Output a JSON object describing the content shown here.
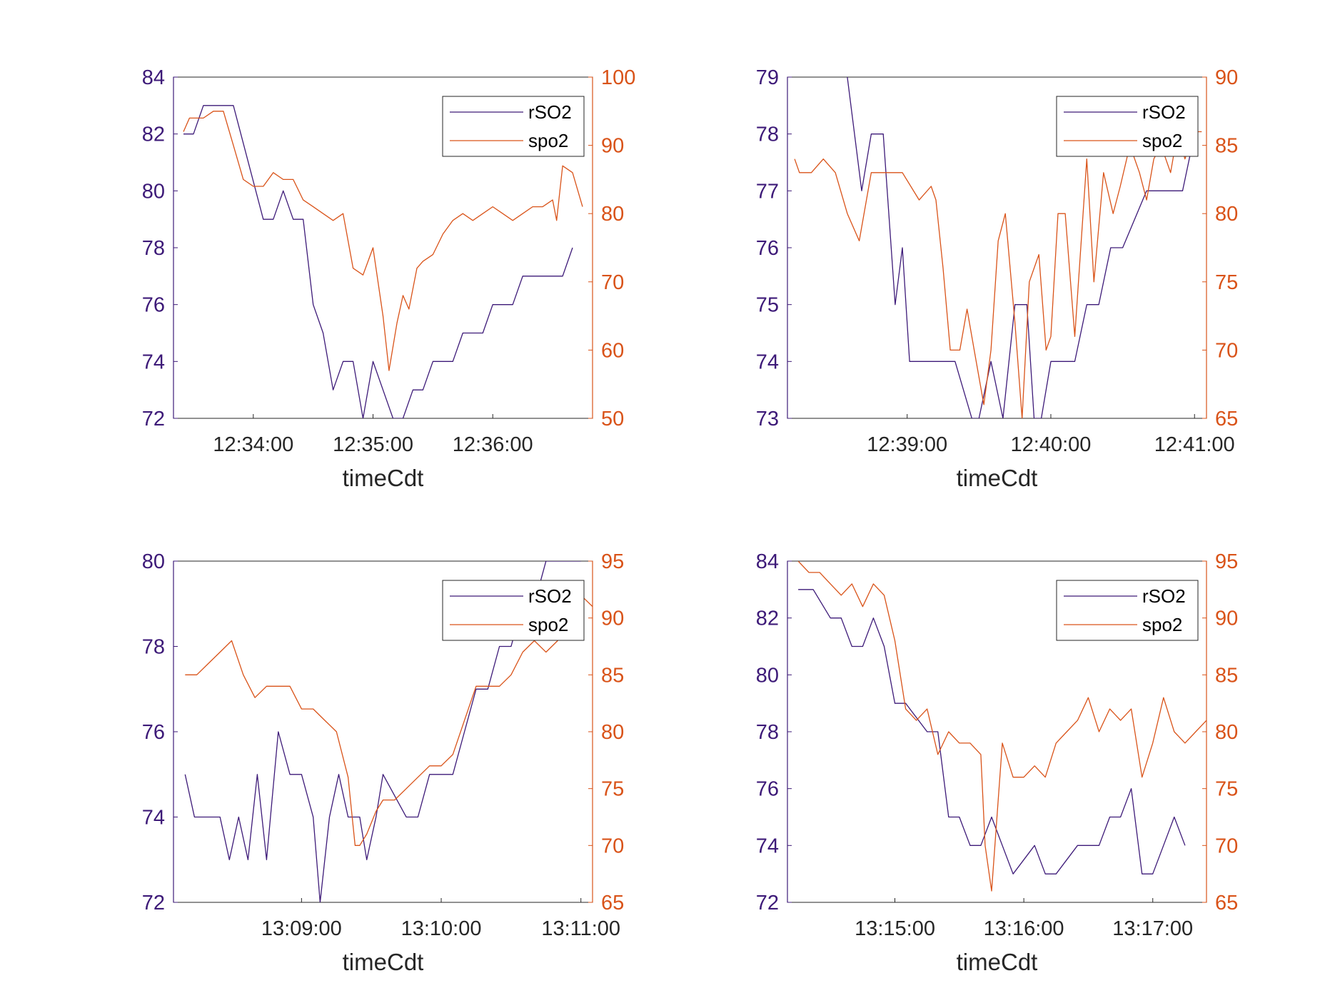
{
  "colors": {
    "rso2": "#3d1a78",
    "spo2": "#d95319",
    "axis": "#262626",
    "box": "#262626"
  },
  "chart_data": [
    {
      "type": "line",
      "xlabel": "timeCdt",
      "x_range": [
        "12:33:20",
        "12:36:50"
      ],
      "x_ticks": [
        "12:34:00",
        "12:35:00",
        "12:36:00"
      ],
      "y_left": {
        "lim": [
          72,
          84
        ],
        "ticks": [
          "72",
          "74",
          "76",
          "78",
          "80",
          "82",
          "84"
        ]
      },
      "y_right": {
        "lim": [
          50,
          100
        ],
        "ticks": [
          "50",
          "60",
          "70",
          "80",
          "90",
          "100"
        ]
      },
      "legend": {
        "position": "top-right",
        "entries": [
          "rSO2",
          "spo2"
        ]
      },
      "series": [
        {
          "name": "rSO2",
          "axis": "left",
          "x": [
            "12:33:25",
            "12:33:30",
            "12:33:35",
            "12:33:40",
            "12:33:50",
            "12:34:05",
            "12:34:10",
            "12:34:15",
            "12:34:20",
            "12:34:25",
            "12:34:30",
            "12:34:35",
            "12:34:40",
            "12:34:45",
            "12:34:50",
            "12:34:55",
            "12:35:00",
            "12:35:05",
            "12:35:10",
            "12:35:15",
            "12:35:20",
            "12:35:25",
            "12:35:30",
            "12:35:40",
            "12:35:45",
            "12:35:55",
            "12:36:00",
            "12:36:10",
            "12:36:15",
            "12:36:25",
            "12:36:35",
            "12:36:40"
          ],
          "y": [
            82,
            82,
            83,
            83,
            83,
            79,
            79,
            80,
            79,
            79,
            76,
            75,
            73,
            74,
            74,
            72,
            74,
            73,
            72,
            72,
            73,
            73,
            74,
            74,
            75,
            75,
            76,
            76,
            77,
            77,
            77,
            78
          ]
        },
        {
          "name": "spo2",
          "axis": "right",
          "x": [
            "12:33:25",
            "12:33:28",
            "12:33:30",
            "12:33:35",
            "12:33:40",
            "12:33:45",
            "12:33:50",
            "12:33:55",
            "12:34:00",
            "12:34:05",
            "12:34:10",
            "12:34:15",
            "12:34:20",
            "12:34:25",
            "12:34:30",
            "12:34:35",
            "12:34:40",
            "12:34:45",
            "12:34:50",
            "12:34:55",
            "12:35:00",
            "12:35:05",
            "12:35:08",
            "12:35:12",
            "12:35:15",
            "12:35:18",
            "12:35:22",
            "12:35:25",
            "12:35:30",
            "12:35:35",
            "12:35:40",
            "12:35:45",
            "12:35:50",
            "12:35:55",
            "12:36:00",
            "12:36:05",
            "12:36:10",
            "12:36:15",
            "12:36:20",
            "12:36:25",
            "12:36:30",
            "12:36:32",
            "12:36:35",
            "12:36:40",
            "12:36:45"
          ],
          "y": [
            92,
            94,
            94,
            94,
            95,
            95,
            90,
            85,
            84,
            84,
            86,
            85,
            85,
            82,
            81,
            80,
            79,
            80,
            72,
            71,
            75,
            65,
            57,
            64,
            68,
            66,
            72,
            73,
            74,
            77,
            79,
            80,
            79,
            80,
            81,
            80,
            79,
            80,
            81,
            81,
            82,
            79,
            87,
            86,
            81
          ]
        }
      ]
    },
    {
      "type": "line",
      "xlabel": "timeCdt",
      "x_range": [
        "12:38:10",
        "12:41:05"
      ],
      "x_ticks": [
        "12:39:00",
        "12:40:00",
        "12:41:00"
      ],
      "y_left": {
        "lim": [
          73,
          79
        ],
        "ticks": [
          "73",
          "74",
          "75",
          "76",
          "77",
          "78",
          "79"
        ]
      },
      "y_right": {
        "lim": [
          65,
          90
        ],
        "ticks": [
          "65",
          "70",
          "75",
          "80",
          "85",
          "90"
        ]
      },
      "legend": {
        "position": "top-right",
        "entries": [
          "rSO2",
          "spo2"
        ]
      },
      "series": [
        {
          "name": "rSO2",
          "axis": "left",
          "x": [
            "12:38:35",
            "12:38:41",
            "12:38:45",
            "12:38:50",
            "12:38:55",
            "12:38:58",
            "12:39:01",
            "12:39:05",
            "12:39:10",
            "12:39:20",
            "12:39:27",
            "12:39:30",
            "12:39:35",
            "12:39:40",
            "12:39:45",
            "12:39:50",
            "12:39:53",
            "12:39:56",
            "12:40:00",
            "12:40:10",
            "12:40:15",
            "12:40:20",
            "12:40:25",
            "12:40:30",
            "12:40:40",
            "12:40:45",
            "12:40:50",
            "12:40:55",
            "12:41:00"
          ],
          "y": [
            79,
            77,
            78,
            78,
            75,
            76,
            74,
            74,
            74,
            74,
            73,
            73,
            74,
            73,
            75,
            75,
            73,
            73,
            74,
            74,
            75,
            75,
            76,
            76,
            77,
            77,
            77,
            77,
            78
          ]
        },
        {
          "name": "spo2",
          "axis": "right",
          "x": [
            "12:38:13",
            "12:38:15",
            "12:38:20",
            "12:38:25",
            "12:38:30",
            "12:38:35",
            "12:38:40",
            "12:38:45",
            "12:38:48",
            "12:38:52",
            "12:38:58",
            "12:39:05",
            "12:39:10",
            "12:39:12",
            "12:39:15",
            "12:39:18",
            "12:39:22",
            "12:39:25",
            "12:39:28",
            "12:39:32",
            "12:39:35",
            "12:39:38",
            "12:39:41",
            "12:39:45",
            "12:39:48",
            "12:39:51",
            "12:39:55",
            "12:39:58",
            "12:40:00",
            "12:40:03",
            "12:40:06",
            "12:40:10",
            "12:40:15",
            "12:40:18",
            "12:40:22",
            "12:40:26",
            "12:40:29",
            "12:40:33",
            "12:40:37",
            "12:40:40",
            "12:40:43",
            "12:40:46",
            "12:40:50",
            "12:40:53",
            "12:40:56",
            "12:41:00",
            "12:41:03"
          ],
          "y": [
            84,
            83,
            83,
            84,
            83,
            80,
            78,
            83,
            83,
            83,
            83,
            81,
            82,
            81,
            76,
            70,
            70,
            73,
            70,
            66,
            70,
            78,
            80,
            72,
            65,
            75,
            77,
            70,
            71,
            80,
            80,
            71,
            84,
            75,
            83,
            80,
            82,
            85,
            83,
            81,
            84,
            85,
            83,
            86,
            84,
            86,
            86
          ]
        }
      ]
    },
    {
      "type": "line",
      "xlabel": "timeCdt",
      "x_range": [
        "13:08:05",
        "13:11:05"
      ],
      "x_ticks": [
        "13:09:00",
        "13:10:00",
        "13:11:00"
      ],
      "y_left": {
        "lim": [
          72,
          80
        ],
        "ticks": [
          "72",
          "74",
          "76",
          "78",
          "80"
        ]
      },
      "y_right": {
        "lim": [
          65,
          95
        ],
        "ticks": [
          "65",
          "70",
          "75",
          "80",
          "85",
          "90",
          "95"
        ]
      },
      "legend": {
        "position": "top-right",
        "entries": [
          "rSO2",
          "spo2"
        ]
      },
      "series": [
        {
          "name": "rSO2",
          "axis": "left",
          "x": [
            "13:08:10",
            "13:08:14",
            "13:08:20",
            "13:08:25",
            "13:08:29",
            "13:08:33",
            "13:08:37",
            "13:08:41",
            "13:08:45",
            "13:08:50",
            "13:08:55",
            "13:09:00",
            "13:09:05",
            "13:09:08",
            "13:09:12",
            "13:09:16",
            "13:09:20",
            "13:09:25",
            "13:09:28",
            "13:09:32",
            "13:09:35",
            "13:09:45",
            "13:09:50",
            "13:09:55",
            "13:10:05",
            "13:10:10",
            "13:10:15",
            "13:10:20",
            "13:10:25",
            "13:10:30",
            "13:10:35",
            "13:10:40",
            "13:10:45",
            "13:10:50",
            "13:10:55",
            "13:11:00"
          ],
          "y": [
            75,
            74,
            74,
            74,
            73,
            74,
            73,
            75,
            73,
            76,
            75,
            75,
            74,
            72,
            74,
            75,
            74,
            74,
            73,
            74,
            75,
            74,
            74,
            75,
            75,
            76,
            77,
            77,
            78,
            78,
            79,
            79,
            80,
            80,
            80,
            80
          ]
        },
        {
          "name": "spo2",
          "axis": "right",
          "x": [
            "13:08:10",
            "13:08:15",
            "13:08:20",
            "13:08:25",
            "13:08:30",
            "13:08:35",
            "13:08:40",
            "13:08:45",
            "13:08:50",
            "13:08:55",
            "13:09:00",
            "13:09:05",
            "13:09:10",
            "13:09:15",
            "13:09:20",
            "13:09:23",
            "13:09:25",
            "13:09:28",
            "13:09:32",
            "13:09:35",
            "13:09:40",
            "13:09:45",
            "13:09:50",
            "13:09:55",
            "13:10:00",
            "13:10:05",
            "13:10:10",
            "13:10:15",
            "13:10:20",
            "13:10:25",
            "13:10:30",
            "13:10:35",
            "13:10:40",
            "13:10:45",
            "13:10:50",
            "13:10:55",
            "13:11:00",
            "13:11:05"
          ],
          "y": [
            85,
            85,
            86,
            87,
            88,
            85,
            83,
            84,
            84,
            84,
            82,
            82,
            81,
            80,
            76,
            70,
            70,
            71,
            73,
            74,
            74,
            75,
            76,
            77,
            77,
            78,
            81,
            84,
            84,
            84,
            85,
            87,
            88,
            87,
            88,
            90,
            92,
            91
          ]
        }
      ]
    },
    {
      "type": "line",
      "xlabel": "timeCdt",
      "x_range": [
        "13:14:10",
        "13:17:25"
      ],
      "x_ticks": [
        "13:15:00",
        "13:16:00",
        "13:17:00"
      ],
      "y_left": {
        "lim": [
          72,
          84
        ],
        "ticks": [
          "72",
          "74",
          "76",
          "78",
          "80",
          "82",
          "84"
        ]
      },
      "y_right": {
        "lim": [
          65,
          95
        ],
        "ticks": [
          "65",
          "70",
          "75",
          "80",
          "85",
          "90",
          "95"
        ]
      },
      "legend": {
        "position": "top-right",
        "entries": [
          "rSO2",
          "spo2"
        ]
      },
      "series": [
        {
          "name": "rSO2",
          "axis": "left",
          "x": [
            "13:14:15",
            "13:14:22",
            "13:14:30",
            "13:14:35",
            "13:14:40",
            "13:14:45",
            "13:14:50",
            "13:14:55",
            "13:15:00",
            "13:15:05",
            "13:15:15",
            "13:15:20",
            "13:15:25",
            "13:15:30",
            "13:15:35",
            "13:15:40",
            "13:15:45",
            "13:15:50",
            "13:15:55",
            "13:16:05",
            "13:16:10",
            "13:16:15",
            "13:16:25",
            "13:16:35",
            "13:16:40",
            "13:16:45",
            "13:16:50",
            "13:16:55",
            "13:17:00",
            "13:17:05",
            "13:17:10",
            "13:17:15"
          ],
          "y": [
            83,
            83,
            82,
            82,
            81,
            81,
            82,
            81,
            79,
            79,
            78,
            78,
            75,
            75,
            74,
            74,
            75,
            74,
            73,
            74,
            73,
            73,
            74,
            74,
            75,
            75,
            76,
            73,
            73,
            74,
            75,
            74
          ]
        },
        {
          "name": "spo2",
          "axis": "right",
          "x": [
            "13:14:15",
            "13:14:20",
            "13:14:25",
            "13:14:30",
            "13:14:35",
            "13:14:40",
            "13:14:45",
            "13:14:50",
            "13:14:55",
            "13:15:00",
            "13:15:05",
            "13:15:10",
            "13:15:15",
            "13:15:20",
            "13:15:25",
            "13:15:30",
            "13:15:35",
            "13:15:40",
            "13:15:42",
            "13:15:45",
            "13:15:50",
            "13:15:55",
            "13:16:00",
            "13:16:05",
            "13:16:10",
            "13:16:15",
            "13:16:20",
            "13:16:25",
            "13:16:30",
            "13:16:35",
            "13:16:40",
            "13:16:45",
            "13:16:50",
            "13:16:55",
            "13:17:00",
            "13:17:05",
            "13:17:10",
            "13:17:15",
            "13:17:20",
            "13:17:25"
          ],
          "y": [
            95,
            94,
            94,
            93,
            92,
            93,
            91,
            93,
            92,
            88,
            82,
            81,
            82,
            78,
            80,
            79,
            79,
            78,
            70,
            66,
            79,
            76,
            76,
            77,
            76,
            79,
            80,
            81,
            83,
            80,
            82,
            81,
            82,
            76,
            79,
            83,
            80,
            79,
            80,
            81
          ]
        }
      ]
    }
  ]
}
